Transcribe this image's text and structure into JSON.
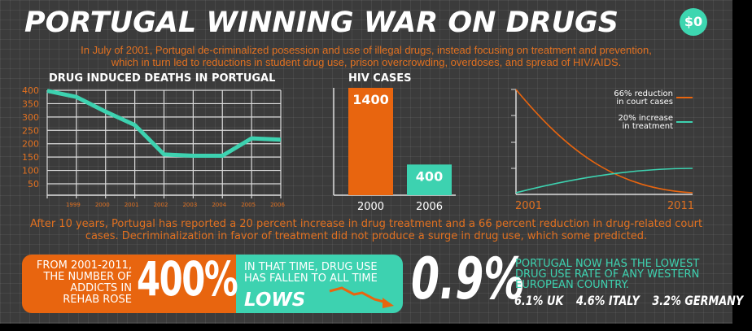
{
  "title": "PORTUGAL WINNING WAR ON DRUGS",
  "badge": "$0",
  "intro": [
    "In July of 2001, Portugal de-criminalized posession and use of illegal drugs, instead focusing on treatment and prevention,",
    "which in turn led to reductions in student drug use, prison overcrowding, overdoses, and spread of HIV/AIDS."
  ],
  "summary": [
    "After 10 years, Portugal has reported a 20 percent increase in drug treatment and a 66 percent reduction in drug-related court",
    "cases. Decriminalization in favor of treatment did not produce a surge in drug use, which some predicted."
  ],
  "colors": {
    "orange": "#e8650f",
    "teal": "#3dd2b0",
    "background": "#3b3b3b"
  },
  "chart_data": [
    {
      "type": "line",
      "title": "DRUG INDUCED DEATHS IN PORTUGAL",
      "x": [
        1998,
        1999,
        2000,
        2001,
        2002,
        2003,
        2004,
        2005,
        2006
      ],
      "y": [
        398,
        375,
        320,
        270,
        160,
        155,
        155,
        220,
        215
      ],
      "xticks": [
        "1999",
        "2000",
        "2001",
        "2002",
        "2003",
        "2004",
        "2005",
        "2006"
      ],
      "yticks": [
        "400",
        "350",
        "300",
        "250",
        "200",
        "150",
        "100",
        "50"
      ],
      "ylim": [
        0,
        400
      ],
      "grid": true,
      "color": "#3dd2b0"
    },
    {
      "type": "bar",
      "title": "HIV CASES",
      "categories": [
        "2000",
        "2006"
      ],
      "values": [
        1400,
        400
      ],
      "labels": [
        "1400",
        "400"
      ],
      "colors": [
        "#e8650f",
        "#3dd2b0"
      ]
    },
    {
      "type": "line",
      "xticks": [
        "2001",
        "2011"
      ],
      "legend": "top-right",
      "series": [
        {
          "name": "66% reduction in court cases",
          "name_lines": [
            "66% reduction",
            "in court cases"
          ],
          "color": "#e8650f",
          "values": [
            100,
            34
          ]
        },
        {
          "name": "20% increase in treatment",
          "name_lines": [
            "20% increase",
            "in treatment"
          ],
          "color": "#3dd2b0",
          "values": [
            0,
            20
          ]
        }
      ]
    }
  ],
  "rehab": {
    "lines": [
      "FROM 2001-2011,",
      "THE NUMBER OF",
      "ADDICTS IN",
      "REHAB ROSE"
    ],
    "value": "400%"
  },
  "drug_use": {
    "lines": [
      "IN THAT TIME, DRUG USE",
      "HAS FALLEN TO ALL TIME"
    ],
    "emphasis": "LOWS"
  },
  "rate": {
    "value": "0.9%",
    "lines": [
      "PORTUGAL NOW HAS THE LOWEST",
      "DRUG USE RATE OF ANY WESTERN",
      "EUROPEAN COUNTRY."
    ],
    "comparisons": [
      "6.1% UK",
      "4.6% ITALY",
      "3.2% GERMANY"
    ]
  }
}
